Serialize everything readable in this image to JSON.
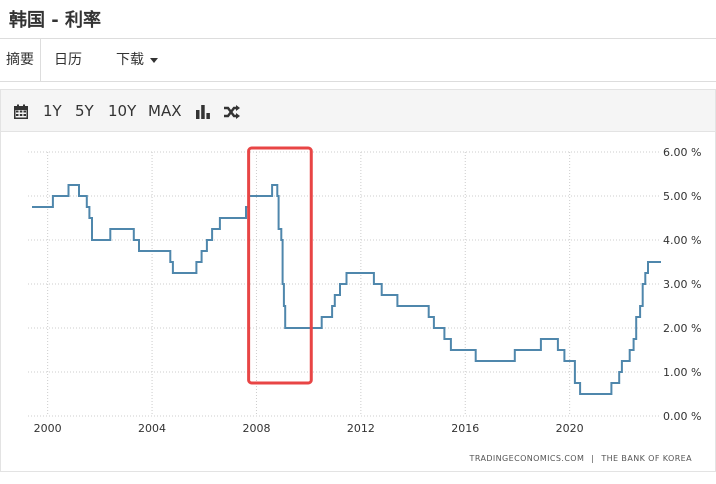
{
  "header": {
    "title": "韩国 - 利率"
  },
  "tabs": [
    {
      "label": "摘要"
    },
    {
      "label": "日历"
    },
    {
      "label": "下载"
    }
  ],
  "toolbar": {
    "calendar_icon": "calendar-icon",
    "ranges": [
      "1Y",
      "5Y",
      "10Y",
      "MAX"
    ],
    "chart_type_icon": "bar-chart-icon",
    "compare_icon": "shuffle-icon"
  },
  "colors": {
    "line": "#4f87ac",
    "highlight": "#e84545",
    "grid": "#cccccc"
  },
  "chart_data": {
    "type": "line",
    "title": "",
    "xlabel": "",
    "ylabel": "",
    "x_ticks": [
      "2000",
      "2004",
      "2008",
      "2012",
      "2016",
      "2020"
    ],
    "y_ticks": [
      "0.00 %",
      "1.00 %",
      "2.00 %",
      "3.00 %",
      "4.00 %",
      "5.00 %",
      "6.00 %"
    ],
    "xlim": [
      1999.4,
      2023.5
    ],
    "ylim": [
      0,
      6
    ],
    "grid": true,
    "step": true,
    "series": [
      {
        "values": [
          [
            1999.4,
            4.75
          ],
          [
            2000.2,
            5.0
          ],
          [
            2000.8,
            5.25
          ],
          [
            2001.2,
            5.0
          ],
          [
            2001.5,
            4.75
          ],
          [
            2001.6,
            4.5
          ],
          [
            2001.7,
            4.0
          ],
          [
            2002.4,
            4.25
          ],
          [
            2003.3,
            4.0
          ],
          [
            2003.5,
            3.75
          ],
          [
            2004.7,
            3.5
          ],
          [
            2004.8,
            3.25
          ],
          [
            2005.7,
            3.5
          ],
          [
            2005.9,
            3.75
          ],
          [
            2006.1,
            4.0
          ],
          [
            2006.3,
            4.25
          ],
          [
            2006.6,
            4.5
          ],
          [
            2007.6,
            4.75
          ],
          [
            2007.7,
            5.0
          ],
          [
            2008.6,
            5.25
          ],
          [
            2008.8,
            5.0
          ],
          [
            2008.85,
            4.25
          ],
          [
            2008.95,
            4.0
          ],
          [
            2009.0,
            3.0
          ],
          [
            2009.05,
            2.5
          ],
          [
            2009.1,
            2.0
          ],
          [
            2010.5,
            2.25
          ],
          [
            2010.9,
            2.5
          ],
          [
            2011.0,
            2.75
          ],
          [
            2011.2,
            3.0
          ],
          [
            2011.45,
            3.25
          ],
          [
            2012.5,
            3.0
          ],
          [
            2012.8,
            2.75
          ],
          [
            2013.4,
            2.5
          ],
          [
            2014.6,
            2.25
          ],
          [
            2014.8,
            2.0
          ],
          [
            2015.2,
            1.75
          ],
          [
            2015.45,
            1.5
          ],
          [
            2016.4,
            1.25
          ],
          [
            2017.9,
            1.5
          ],
          [
            2018.9,
            1.75
          ],
          [
            2019.55,
            1.5
          ],
          [
            2019.8,
            1.25
          ],
          [
            2020.2,
            0.75
          ],
          [
            2020.4,
            0.5
          ],
          [
            2021.6,
            0.75
          ],
          [
            2021.9,
            1.0
          ],
          [
            2022.0,
            1.25
          ],
          [
            2022.3,
            1.5
          ],
          [
            2022.45,
            1.75
          ],
          [
            2022.55,
            2.25
          ],
          [
            2022.7,
            2.5
          ],
          [
            2022.8,
            3.0
          ],
          [
            2022.9,
            3.25
          ],
          [
            2023.0,
            3.5
          ],
          [
            2023.5,
            3.5
          ]
        ]
      }
    ],
    "highlight_range": [
      2007.7,
      2010.1
    ]
  },
  "credit": {
    "source": "TRADINGECONOMICS.COM",
    "separator": "|",
    "publisher": "THE BANK OF KOREA"
  }
}
